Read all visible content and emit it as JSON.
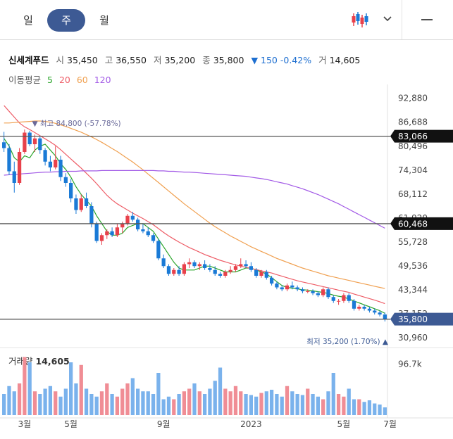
{
  "tabs": [
    {
      "label": "일",
      "active": false
    },
    {
      "label": "주",
      "active": true
    },
    {
      "label": "월",
      "active": false
    }
  ],
  "icons": {
    "candle": "candlestick-chart-icon",
    "dropdown": "chevron-down-icon",
    "menu": "menu-icon"
  },
  "stock": {
    "name": "신세계푸드",
    "open_label": "시",
    "open": "35,450",
    "high_label": "고",
    "high": "36,550",
    "low_label": "저",
    "low": "35,200",
    "close_label": "종",
    "close": "35,800",
    "change": "▼ 150 -0.42%",
    "volume_label": "거",
    "volume": "14,605"
  },
  "ma_legend": {
    "label": "이동평균",
    "periods": [
      "5",
      "20",
      "60",
      "120"
    ],
    "colors": [
      "#2aa52a",
      "#ee5d67",
      "#f0a050",
      "#a25ae6"
    ]
  },
  "colors": {
    "up": "#e8414b",
    "down": "#1a7ad6",
    "up_vol": "#f08d95",
    "down_vol": "#7ab2ec",
    "tab_active": "#3d5a94",
    "change": "#1e6fd0"
  },
  "chart_data": {
    "type": "candlestick",
    "y_tick_labels": [
      "92,880",
      "86,688",
      "80,496",
      "74,304",
      "68,112",
      "61,920",
      "55,728",
      "49,536",
      "43,344",
      "37,152",
      "30,960"
    ],
    "y_ticks": [
      92880,
      86688,
      80496,
      74304,
      68112,
      61920,
      55728,
      49536,
      43344,
      37152,
      30960
    ],
    "ylim": [
      31000,
      95000
    ],
    "x_tick_labels": [
      {
        "label": "3월",
        "i": 4
      },
      {
        "label": "5월",
        "i": 13
      },
      {
        "label": "9월",
        "i": 31
      },
      {
        "label": "2023",
        "i": 48
      },
      {
        "label": "5월",
        "i": 66
      },
      {
        "label": "7월",
        "i": 75
      }
    ],
    "reference_lines": [
      {
        "value": 83066,
        "label": "83,066"
      },
      {
        "value": 60468,
        "label": "60,468"
      },
      {
        "value": 35800,
        "label": "35,800"
      }
    ],
    "annotations": {
      "high": {
        "text": "▼ 최고 84,800 (-57.78%)",
        "value": 84800,
        "i": 6
      },
      "low": {
        "text": "최저 35,200 (1.70%) ▲",
        "value": 35200
      }
    },
    "candles": [
      [
        81500,
        84200,
        79000,
        80000
      ],
      [
        80000,
        81000,
        73000,
        74000
      ],
      [
        74000,
        76500,
        68500,
        71000
      ],
      [
        71000,
        80000,
        70500,
        79000
      ],
      [
        79000,
        84800,
        78500,
        84000
      ],
      [
        84000,
        84500,
        80500,
        81000
      ],
      [
        81000,
        83500,
        79000,
        82500
      ],
      [
        82500,
        83000,
        78500,
        79500
      ],
      [
        79500,
        80000,
        75500,
        76500
      ],
      [
        76500,
        78000,
        74000,
        75000
      ],
      [
        75000,
        80500,
        74500,
        77000
      ],
      [
        77000,
        78000,
        71500,
        72500
      ],
      [
        72500,
        73500,
        70000,
        71000
      ],
      [
        71000,
        72000,
        66000,
        67000
      ],
      [
        67000,
        68000,
        63000,
        64000
      ],
      [
        64000,
        68000,
        63500,
        67000
      ],
      [
        67000,
        68500,
        64500,
        65000
      ],
      [
        65000,
        66000,
        59500,
        60500
      ],
      [
        60500,
        61000,
        55500,
        56000
      ],
      [
        56000,
        58000,
        55000,
        57500
      ],
      [
        57500,
        59000,
        56500,
        58500
      ],
      [
        58500,
        59500,
        57000,
        57500
      ],
      [
        57500,
        60500,
        57000,
        59500
      ],
      [
        59500,
        61000,
        58000,
        60500
      ],
      [
        60500,
        63000,
        60000,
        62500
      ],
      [
        62500,
        63500,
        61000,
        61500
      ],
      [
        61500,
        62000,
        58500,
        59000
      ],
      [
        59000,
        60500,
        58000,
        58500
      ],
      [
        58500,
        59500,
        57000,
        57500
      ],
      [
        57500,
        58000,
        55500,
        56000
      ],
      [
        56000,
        56500,
        51000,
        51500
      ],
      [
        51500,
        52500,
        49000,
        49500
      ],
      [
        49500,
        50000,
        47000,
        47500
      ],
      [
        47500,
        49000,
        47000,
        48500
      ],
      [
        48500,
        49500,
        47000,
        47500
      ],
      [
        47500,
        50500,
        47000,
        50000
      ],
      [
        50000,
        51500,
        49000,
        50500
      ],
      [
        50500,
        51000,
        49000,
        49500
      ],
      [
        49500,
        50500,
        48500,
        50000
      ],
      [
        50000,
        51000,
        48500,
        49000
      ],
      [
        49000,
        50000,
        48000,
        48500
      ],
      [
        48500,
        49500,
        47000,
        47500
      ],
      [
        47500,
        48000,
        46500,
        47000
      ],
      [
        47000,
        48500,
        46500,
        48000
      ],
      [
        48000,
        49500,
        47500,
        48500
      ],
      [
        48500,
        50000,
        48000,
        49500
      ],
      [
        49500,
        51500,
        49000,
        50000
      ],
      [
        50000,
        51000,
        49000,
        49500
      ],
      [
        49500,
        50500,
        48000,
        48500
      ],
      [
        48500,
        49000,
        46500,
        47000
      ],
      [
        47000,
        48500,
        46500,
        48000
      ],
      [
        48000,
        48500,
        46000,
        46500
      ],
      [
        46500,
        47000,
        44500,
        45000
      ],
      [
        45000,
        45500,
        43500,
        44000
      ],
      [
        44000,
        44500,
        43000,
        43500
      ],
      [
        43500,
        45000,
        43000,
        44500
      ],
      [
        44500,
        45500,
        43500,
        44000
      ],
      [
        44000,
        44500,
        43000,
        43500
      ],
      [
        43500,
        44000,
        42500,
        43000
      ],
      [
        43000,
        43500,
        42500,
        43000
      ],
      [
        43000,
        43500,
        42000,
        42500
      ],
      [
        42500,
        43000,
        41500,
        42000
      ],
      [
        42000,
        44000,
        41500,
        43500
      ],
      [
        43500,
        44000,
        41000,
        41500
      ],
      [
        41500,
        42000,
        40000,
        40500
      ],
      [
        40500,
        41000,
        39500,
        40500
      ],
      [
        40500,
        42500,
        40000,
        42000
      ],
      [
        42000,
        42500,
        40000,
        40500
      ],
      [
        40500,
        41000,
        38000,
        38500
      ],
      [
        38500,
        39500,
        38000,
        39000
      ],
      [
        39000,
        39500,
        38000,
        38500
      ],
      [
        38500,
        39000,
        37500,
        38000
      ],
      [
        38000,
        38500,
        37000,
        37500
      ],
      [
        37500,
        38000,
        36500,
        37000
      ],
      [
        37000,
        37500,
        35200,
        35800
      ]
    ],
    "ma_series": {
      "ma5": [
        82500,
        80500,
        77500,
        76500,
        78000,
        77500,
        79500,
        80500,
        81000,
        79500,
        78000,
        76000,
        74500,
        72500,
        70000,
        68000,
        66500,
        65000,
        62500,
        60500,
        58500,
        57500,
        57500,
        58000,
        59500,
        60000,
        60500,
        60500,
        59500,
        58500,
        56500,
        54500,
        52500,
        50500,
        49000,
        48500,
        48500,
        48500,
        49000,
        49500,
        49500,
        49000,
        48500,
        48000,
        48000,
        48000,
        48500,
        49000,
        49000,
        48500,
        48000,
        47500,
        46500,
        45500,
        44500,
        44000,
        43800,
        43600,
        43400,
        43300,
        43100,
        42900,
        42700,
        42400,
        42000,
        41700,
        41500,
        41000,
        40500,
        40000,
        39500,
        39000,
        38500,
        38000,
        37300
      ],
      "ma20": [
        91000,
        89500,
        88000,
        86500,
        85500,
        84800,
        84000,
        83200,
        82400,
        81600,
        80700,
        79600,
        78400,
        77200,
        76000,
        74800,
        73500,
        72200,
        70800,
        69300,
        67800,
        66600,
        65600,
        64800,
        64000,
        63200,
        62500,
        61800,
        61000,
        60200,
        59200,
        58200,
        57300,
        56500,
        55700,
        55000,
        54300,
        53700,
        53100,
        52500,
        52000,
        51500,
        51000,
        50600,
        50200,
        49800,
        49500,
        49200,
        48900,
        48600,
        48300,
        48000,
        47700,
        47300,
        46900,
        46500,
        46100,
        45700,
        45400,
        45100,
        44800,
        44500,
        44200,
        43900,
        43600,
        43300,
        43000,
        42700,
        42300,
        41900,
        41500,
        41100,
        40700,
        40300,
        39800
      ],
      "ma60": [
        86500,
        86500,
        86600,
        86700,
        86800,
        86900,
        87000,
        87000,
        86900,
        86700,
        86400,
        86000,
        85600,
        85100,
        84600,
        84100,
        83500,
        82900,
        82200,
        81500,
        80700,
        79900,
        79100,
        78200,
        77300,
        76400,
        75400,
        74400,
        73300,
        72200,
        71100,
        70000,
        68900,
        67800,
        66700,
        65600,
        64600,
        63600,
        62600,
        61600,
        60600,
        59700,
        58900,
        58100,
        57300,
        56600,
        55900,
        55200,
        54500,
        53900,
        53300,
        52700,
        52100,
        51500,
        51000,
        50500,
        50000,
        49500,
        49000,
        48600,
        48200,
        47800,
        47400,
        47000,
        46700,
        46400,
        46100,
        45800,
        45500,
        45200,
        44900,
        44600,
        44300,
        44000,
        43700
      ],
      "ma120": [
        73000,
        73100,
        73200,
        73300,
        73400,
        73500,
        73600,
        73700,
        73800,
        73800,
        73900,
        73900,
        74000,
        74000,
        74000,
        74100,
        74100,
        74100,
        74100,
        74200,
        74200,
        74200,
        74200,
        74200,
        74200,
        74200,
        74200,
        74200,
        74200,
        74200,
        74100,
        74100,
        74000,
        74000,
        73900,
        73800,
        73800,
        73700,
        73600,
        73500,
        73400,
        73300,
        73200,
        73100,
        73000,
        72900,
        72800,
        72700,
        72500,
        72300,
        72100,
        71900,
        71600,
        71300,
        71000,
        70700,
        70300,
        69900,
        69500,
        69000,
        68500,
        68000,
        67400,
        66800,
        66200,
        65600,
        64900,
        64200,
        63500,
        62800,
        62100,
        61400,
        60700,
        60000,
        59300
      ]
    },
    "volume_series": {
      "label": "거래량",
      "last": "14,605",
      "axis_label": "96.7k",
      "axis_value": 96700,
      "values": [
        40000,
        55000,
        45000,
        60000,
        110000,
        100000,
        45000,
        40000,
        50000,
        55000,
        45000,
        35000,
        50000,
        100000,
        60000,
        95000,
        50000,
        40000,
        35000,
        45000,
        60000,
        40000,
        35000,
        50000,
        60000,
        70000,
        50000,
        45000,
        45000,
        40000,
        80000,
        30000,
        35000,
        30000,
        40000,
        45000,
        50000,
        60000,
        45000,
        40000,
        50000,
        65000,
        90000,
        50000,
        45000,
        55000,
        45000,
        40000,
        38000,
        35000,
        42000,
        45000,
        48000,
        40000,
        35000,
        55000,
        45000,
        40000,
        38000,
        50000,
        40000,
        35000,
        30000,
        45000,
        80000,
        40000,
        35000,
        50000,
        30000,
        30000,
        25000,
        28000,
        22000,
        20000,
        14605
      ]
    }
  }
}
